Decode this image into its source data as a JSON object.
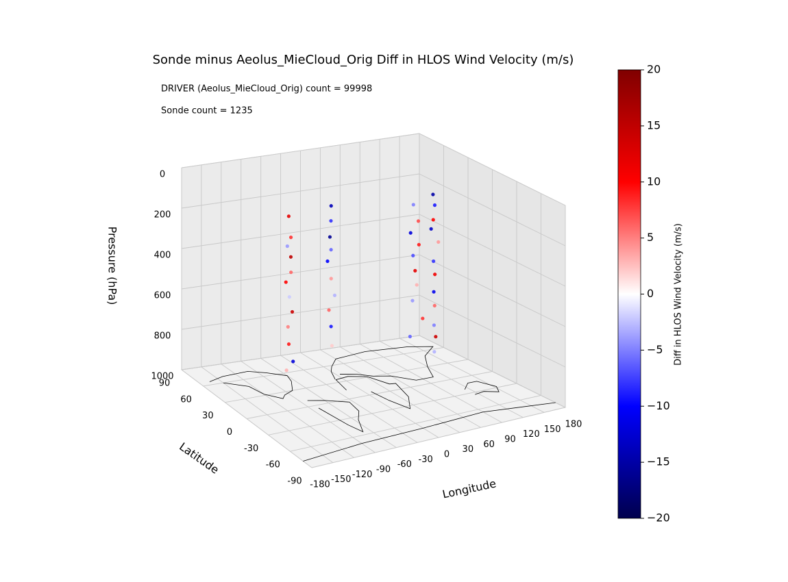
{
  "chart_data": {
    "type": "scatter3d",
    "title": "Sonde minus Aeolus_MieCloud_Orig Diff in HLOS Wind Velocity (m/s)",
    "annotations": [
      "DRIVER (Aeolus_MieCloud_Orig) count = 99998",
      "Sonde count = 1235"
    ],
    "xlabel": "Longitude",
    "ylabel": "Latitude",
    "zlabel": "Pressure (hPa)",
    "xlim": [
      -180,
      180
    ],
    "xticks": [
      -180,
      -150,
      -120,
      -90,
      -60,
      -30,
      0,
      30,
      60,
      90,
      120,
      150,
      180
    ],
    "ylim": [
      -90,
      90
    ],
    "yticks": [
      -90,
      -60,
      -30,
      0,
      30,
      60,
      90
    ],
    "zlim": [
      1000,
      0
    ],
    "zticks": [
      0,
      200,
      400,
      600,
      800,
      1000
    ],
    "grid": true,
    "colormap": "seismic",
    "colorbar": {
      "label": "Diff in HLOS Wind Velocity (m/s)",
      "lim": [
        -20,
        20
      ],
      "ticks": [
        {
          "value": -20,
          "label": "−20"
        },
        {
          "value": -15,
          "label": "−15"
        },
        {
          "value": -10,
          "label": "−10"
        },
        {
          "value": -5,
          "label": "−5"
        },
        0,
        5,
        10,
        15,
        20
      ]
    },
    "x": [
      -80,
      -79,
      -81,
      -78,
      -80,
      -82,
      -79,
      -77,
      -80,
      -81,
      -78,
      -80,
      0,
      2,
      -3,
      1,
      -2,
      0,
      3,
      -1,
      1,
      0,
      105,
      110,
      102,
      112,
      108,
      104,
      110,
      106,
      114,
      100,
      140,
      145,
      138,
      142,
      148,
      136,
      144,
      140,
      146,
      138,
      150,
      142
    ],
    "y": [
      35,
      33,
      36,
      34,
      32,
      37,
      35,
      33,
      36,
      34,
      31,
      38,
      50,
      52,
      49,
      51,
      53,
      50,
      48,
      52,
      51,
      49,
      35,
      33,
      36,
      34,
      38,
      32,
      35,
      37,
      31,
      35,
      40,
      42,
      38,
      44,
      40,
      36,
      41,
      39,
      43,
      37,
      45,
      40
    ],
    "z": [
      150,
      250,
      300,
      350,
      420,
      480,
      550,
      620,
      700,
      780,
      860,
      920,
      180,
      260,
      330,
      400,
      460,
      540,
      620,
      700,
      780,
      870,
      200,
      280,
      340,
      400,
      460,
      520,
      600,
      680,
      760,
      850,
      180,
      240,
      300,
      360,
      420,
      500,
      580,
      660,
      740,
      820,
      900,
      960
    ],
    "values": [
      12,
      8,
      -4,
      15,
      6,
      10,
      -2,
      14,
      5,
      9,
      -12,
      3,
      -14,
      -8,
      -16,
      -6,
      -10,
      4,
      -3,
      6,
      -9,
      2,
      -5,
      7,
      -12,
      9,
      -7,
      12,
      3,
      -4,
      8,
      -6,
      -15,
      -9,
      10,
      -13,
      4,
      -8,
      11,
      -11,
      6,
      -5,
      14,
      -3
    ]
  }
}
